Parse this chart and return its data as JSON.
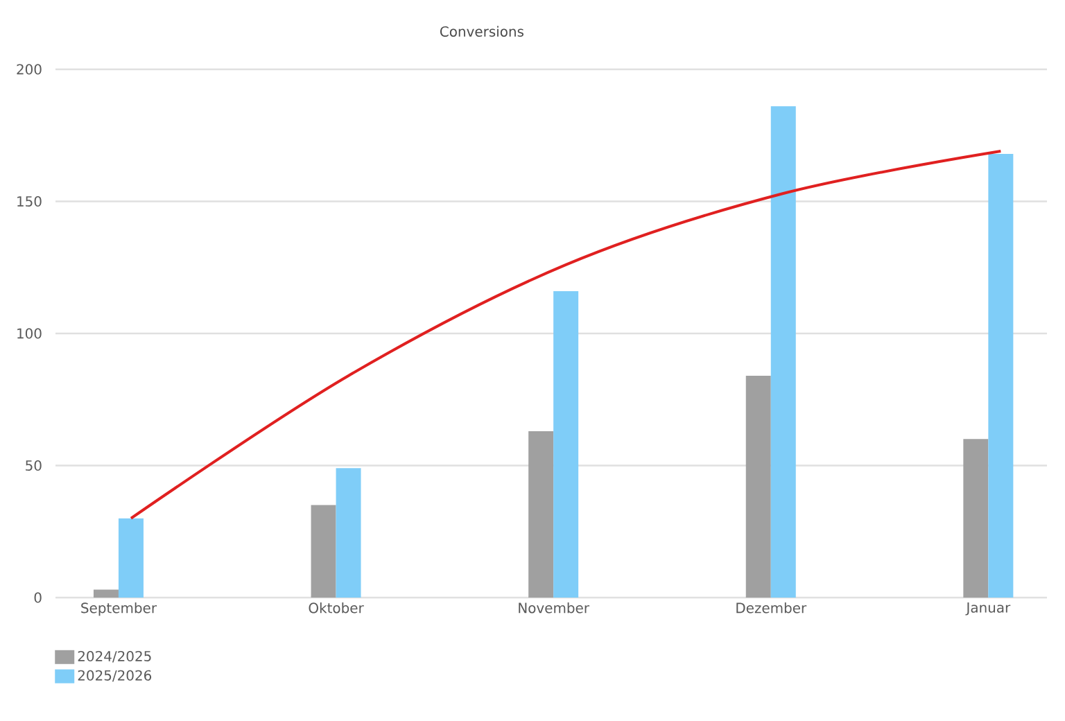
{
  "chart_data": {
    "type": "bar",
    "title": "Conversions",
    "categories": [
      "September",
      "Oktober",
      "November",
      "Dezember",
      "Januar"
    ],
    "series": [
      {
        "name": "2024/2025",
        "color": "#a0a0a0",
        "values": [
          3,
          35,
          63,
          84,
          60
        ]
      },
      {
        "name": "2025/2026",
        "color": "#7fcdf8",
        "values": [
          30,
          49,
          116,
          186,
          168
        ]
      },
      {
        "type": "line",
        "color": "#e02020",
        "values": [
          30,
          84,
          126,
          153,
          169
        ]
      }
    ],
    "ylim": [
      0,
      200
    ],
    "yticks": [
      0,
      50,
      100,
      150,
      200
    ],
    "grid": "y",
    "legend": "bottom left"
  }
}
